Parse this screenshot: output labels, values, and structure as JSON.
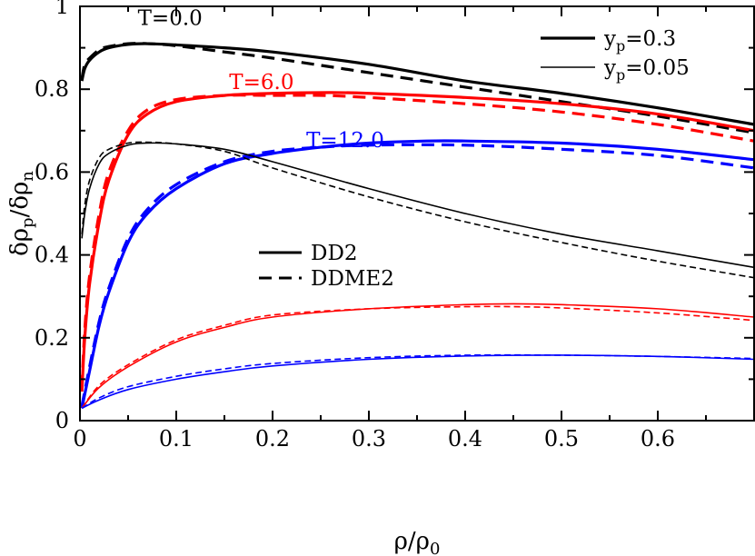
{
  "chart_data": {
    "type": "line",
    "xlabel": "ρ/ρ0",
    "ylabel": "δρp/δρn",
    "xlim": [
      0,
      0.7
    ],
    "ylim": [
      0,
      1
    ],
    "x_ticks": [
      {
        "value": 0,
        "label": "0"
      },
      {
        "value": 0.1,
        "label": "0.1"
      },
      {
        "value": 0.2,
        "label": "0.2"
      },
      {
        "value": 0.3,
        "label": "0.3"
      },
      {
        "value": 0.4,
        "label": "0.4"
      },
      {
        "value": 0.5,
        "label": "0.5"
      },
      {
        "value": 0.6,
        "label": "0.6"
      }
    ],
    "y_ticks": [
      {
        "value": 0,
        "label": "0"
      },
      {
        "value": 0.2,
        "label": "0.2"
      },
      {
        "value": 0.4,
        "label": "0.4"
      },
      {
        "value": 0.6,
        "label": "0.6"
      },
      {
        "value": 0.8,
        "label": "0.8"
      },
      {
        "value": 1.0,
        "label": "1"
      }
    ],
    "annotations": [
      {
        "text": "T=0.0",
        "color": "#000000",
        "x": 0.06,
        "y": 0.955
      },
      {
        "text": "T=6.0",
        "color": "#ff0000",
        "x": 0.155,
        "y": 0.8
      },
      {
        "text": "T=12.0",
        "color": "#0000ff",
        "x": 0.235,
        "y": 0.66
      }
    ],
    "legend_yp": [
      {
        "label": "yp=0.3",
        "main": "y",
        "sub": "p",
        "rest": "=0.3",
        "width": "thick"
      },
      {
        "label": "yp=0.05",
        "main": "y",
        "sub": "p",
        "rest": "=0.05",
        "width": "thin"
      }
    ],
    "legend_model": [
      {
        "label": "DD2",
        "dash": "solid"
      },
      {
        "label": "DDME2",
        "dash": "dashed"
      }
    ],
    "series": [
      {
        "name": "DD2 T=0.0 yp=0.3",
        "model": "DD2",
        "T": 0.0,
        "yp": 0.3,
        "color": "#000000",
        "width": "thick",
        "dash": "solid",
        "points": [
          [
            0.002,
            0.82
          ],
          [
            0.005,
            0.85
          ],
          [
            0.01,
            0.87
          ],
          [
            0.02,
            0.89
          ],
          [
            0.03,
            0.9
          ],
          [
            0.05,
            0.908
          ],
          [
            0.07,
            0.91
          ],
          [
            0.1,
            0.907
          ],
          [
            0.15,
            0.9
          ],
          [
            0.2,
            0.89
          ],
          [
            0.3,
            0.86
          ],
          [
            0.4,
            0.82
          ],
          [
            0.5,
            0.79
          ],
          [
            0.6,
            0.755
          ],
          [
            0.7,
            0.715
          ]
        ]
      },
      {
        "name": "DDME2 T=0.0 yp=0.3",
        "model": "DDME2",
        "T": 0.0,
        "yp": 0.3,
        "color": "#000000",
        "width": "thick",
        "dash": "dashed",
        "points": [
          [
            0.002,
            0.825
          ],
          [
            0.005,
            0.86
          ],
          [
            0.01,
            0.875
          ],
          [
            0.02,
            0.895
          ],
          [
            0.03,
            0.903
          ],
          [
            0.05,
            0.91
          ],
          [
            0.07,
            0.91
          ],
          [
            0.1,
            0.905
          ],
          [
            0.15,
            0.89
          ],
          [
            0.2,
            0.875
          ],
          [
            0.3,
            0.84
          ],
          [
            0.4,
            0.805
          ],
          [
            0.5,
            0.77
          ],
          [
            0.6,
            0.735
          ],
          [
            0.7,
            0.695
          ]
        ]
      },
      {
        "name": "DD2 T=6.0 yp=0.3",
        "model": "DD2",
        "T": 6.0,
        "yp": 0.3,
        "color": "#ff0000",
        "width": "thick",
        "dash": "solid",
        "points": [
          [
            0.002,
            0.07
          ],
          [
            0.005,
            0.2
          ],
          [
            0.01,
            0.33
          ],
          [
            0.02,
            0.48
          ],
          [
            0.03,
            0.58
          ],
          [
            0.05,
            0.69
          ],
          [
            0.07,
            0.74
          ],
          [
            0.1,
            0.77
          ],
          [
            0.15,
            0.785
          ],
          [
            0.2,
            0.79
          ],
          [
            0.26,
            0.792
          ],
          [
            0.3,
            0.79
          ],
          [
            0.4,
            0.78
          ],
          [
            0.5,
            0.765
          ],
          [
            0.6,
            0.74
          ],
          [
            0.7,
            0.7
          ]
        ]
      },
      {
        "name": "DDME2 T=6.0 yp=0.3",
        "model": "DDME2",
        "T": 6.0,
        "yp": 0.3,
        "color": "#ff0000",
        "width": "thick",
        "dash": "dashed",
        "points": [
          [
            0.002,
            0.08
          ],
          [
            0.005,
            0.22
          ],
          [
            0.01,
            0.35
          ],
          [
            0.02,
            0.5
          ],
          [
            0.03,
            0.6
          ],
          [
            0.05,
            0.7
          ],
          [
            0.07,
            0.75
          ],
          [
            0.1,
            0.775
          ],
          [
            0.15,
            0.785
          ],
          [
            0.2,
            0.785
          ],
          [
            0.25,
            0.785
          ],
          [
            0.3,
            0.78
          ],
          [
            0.4,
            0.765
          ],
          [
            0.5,
            0.745
          ],
          [
            0.6,
            0.715
          ],
          [
            0.7,
            0.675
          ]
        ]
      },
      {
        "name": "DD2 T=12.0 yp=0.3",
        "model": "DD2",
        "T": 12.0,
        "yp": 0.3,
        "color": "#0000ff",
        "width": "thick",
        "dash": "solid",
        "points": [
          [
            0.002,
            0.03
          ],
          [
            0.01,
            0.12
          ],
          [
            0.02,
            0.23
          ],
          [
            0.03,
            0.31
          ],
          [
            0.05,
            0.43
          ],
          [
            0.07,
            0.5
          ],
          [
            0.1,
            0.56
          ],
          [
            0.15,
            0.62
          ],
          [
            0.2,
            0.645
          ],
          [
            0.25,
            0.66
          ],
          [
            0.3,
            0.67
          ],
          [
            0.36,
            0.675
          ],
          [
            0.4,
            0.675
          ],
          [
            0.5,
            0.67
          ],
          [
            0.6,
            0.655
          ],
          [
            0.7,
            0.63
          ]
        ]
      },
      {
        "name": "DDME2 T=12.0 yp=0.3",
        "model": "DDME2",
        "T": 12.0,
        "yp": 0.3,
        "color": "#0000ff",
        "width": "thick",
        "dash": "dashed",
        "points": [
          [
            0.002,
            0.035
          ],
          [
            0.01,
            0.13
          ],
          [
            0.02,
            0.24
          ],
          [
            0.03,
            0.32
          ],
          [
            0.05,
            0.44
          ],
          [
            0.07,
            0.51
          ],
          [
            0.1,
            0.57
          ],
          [
            0.15,
            0.625
          ],
          [
            0.2,
            0.65
          ],
          [
            0.25,
            0.66
          ],
          [
            0.3,
            0.665
          ],
          [
            0.4,
            0.665
          ],
          [
            0.5,
            0.655
          ],
          [
            0.6,
            0.64
          ],
          [
            0.7,
            0.61
          ]
        ]
      },
      {
        "name": "DD2 T=0.0 yp=0.05",
        "model": "DD2",
        "T": 0.0,
        "yp": 0.05,
        "color": "#000000",
        "width": "thin",
        "dash": "solid",
        "points": [
          [
            0.002,
            0.44
          ],
          [
            0.005,
            0.5
          ],
          [
            0.01,
            0.56
          ],
          [
            0.02,
            0.62
          ],
          [
            0.03,
            0.645
          ],
          [
            0.05,
            0.665
          ],
          [
            0.07,
            0.67
          ],
          [
            0.1,
            0.668
          ],
          [
            0.15,
            0.655
          ],
          [
            0.2,
            0.625
          ],
          [
            0.3,
            0.56
          ],
          [
            0.4,
            0.5
          ],
          [
            0.5,
            0.45
          ],
          [
            0.6,
            0.41
          ],
          [
            0.7,
            0.37
          ]
        ]
      },
      {
        "name": "DDME2 T=0.0 yp=0.05",
        "model": "DDME2",
        "T": 0.0,
        "yp": 0.05,
        "color": "#000000",
        "width": "thin",
        "dash": "dashed",
        "points": [
          [
            0.002,
            0.45
          ],
          [
            0.005,
            0.52
          ],
          [
            0.01,
            0.58
          ],
          [
            0.02,
            0.635
          ],
          [
            0.03,
            0.655
          ],
          [
            0.05,
            0.67
          ],
          [
            0.07,
            0.672
          ],
          [
            0.1,
            0.668
          ],
          [
            0.15,
            0.65
          ],
          [
            0.2,
            0.61
          ],
          [
            0.3,
            0.54
          ],
          [
            0.4,
            0.48
          ],
          [
            0.5,
            0.43
          ],
          [
            0.6,
            0.385
          ],
          [
            0.7,
            0.345
          ]
        ]
      },
      {
        "name": "DD2 T=6.0 yp=0.05",
        "model": "DD2",
        "T": 6.0,
        "yp": 0.05,
        "color": "#ff0000",
        "width": "thin",
        "dash": "solid",
        "points": [
          [
            0.002,
            0.03
          ],
          [
            0.02,
            0.08
          ],
          [
            0.05,
            0.13
          ],
          [
            0.1,
            0.19
          ],
          [
            0.15,
            0.225
          ],
          [
            0.2,
            0.25
          ],
          [
            0.3,
            0.27
          ],
          [
            0.4,
            0.28
          ],
          [
            0.45,
            0.282
          ],
          [
            0.5,
            0.28
          ],
          [
            0.6,
            0.27
          ],
          [
            0.7,
            0.25
          ]
        ]
      },
      {
        "name": "DDME2 T=6.0 yp=0.05",
        "model": "DDME2",
        "T": 6.0,
        "yp": 0.05,
        "color": "#ff0000",
        "width": "thin",
        "dash": "dashed",
        "points": [
          [
            0.002,
            0.03
          ],
          [
            0.02,
            0.085
          ],
          [
            0.05,
            0.135
          ],
          [
            0.1,
            0.195
          ],
          [
            0.15,
            0.23
          ],
          [
            0.2,
            0.255
          ],
          [
            0.3,
            0.27
          ],
          [
            0.4,
            0.275
          ],
          [
            0.45,
            0.275
          ],
          [
            0.5,
            0.272
          ],
          [
            0.6,
            0.26
          ],
          [
            0.7,
            0.242
          ]
        ]
      },
      {
        "name": "DD2 T=12.0 yp=0.05",
        "model": "DD2",
        "T": 12.0,
        "yp": 0.05,
        "color": "#0000ff",
        "width": "thin",
        "dash": "solid",
        "points": [
          [
            0.002,
            0.03
          ],
          [
            0.02,
            0.05
          ],
          [
            0.05,
            0.075
          ],
          [
            0.1,
            0.1
          ],
          [
            0.15,
            0.118
          ],
          [
            0.2,
            0.132
          ],
          [
            0.3,
            0.148
          ],
          [
            0.4,
            0.156
          ],
          [
            0.5,
            0.158
          ],
          [
            0.6,
            0.155
          ],
          [
            0.7,
            0.148
          ]
        ]
      },
      {
        "name": "DDME2 T=12.0 yp=0.05",
        "model": "DDME2",
        "T": 12.0,
        "yp": 0.05,
        "color": "#0000ff",
        "width": "thin",
        "dash": "dashed",
        "points": [
          [
            0.002,
            0.03
          ],
          [
            0.02,
            0.055
          ],
          [
            0.05,
            0.082
          ],
          [
            0.1,
            0.107
          ],
          [
            0.15,
            0.125
          ],
          [
            0.2,
            0.138
          ],
          [
            0.3,
            0.152
          ],
          [
            0.4,
            0.158
          ],
          [
            0.5,
            0.158
          ],
          [
            0.6,
            0.155
          ],
          [
            0.7,
            0.15
          ]
        ]
      }
    ]
  }
}
